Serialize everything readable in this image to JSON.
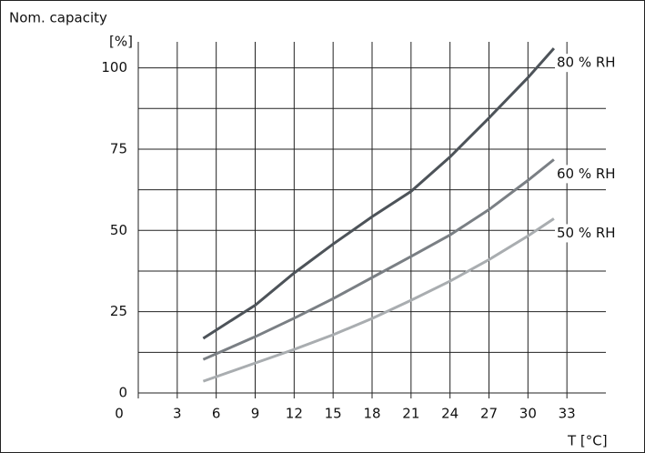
{
  "chart_data": {
    "type": "line",
    "title": "Nom. capacity",
    "y_unit": "[%]",
    "x_label": "T [°C]",
    "x": [
      5,
      9,
      12,
      15,
      18,
      21,
      24,
      27,
      30,
      32
    ],
    "series": [
      {
        "name": "80 % RH",
        "color": "#4d5359",
        "values": [
          16.8,
          27,
          36.9,
          45.8,
          54.2,
          62,
          72.6,
          84.6,
          97,
          106
        ]
      },
      {
        "name": "60 % RH",
        "color": "#7a7f84",
        "values": [
          10.3,
          17.3,
          23,
          29,
          35.5,
          42,
          48.6,
          56.4,
          65.4,
          71.8
        ]
      },
      {
        "name": "50 % RH",
        "color": "#a9adb0",
        "values": [
          3.6,
          9.2,
          13.4,
          17.9,
          22.9,
          28.5,
          34.4,
          41,
          48.3,
          53.6
        ]
      }
    ],
    "xlim": [
      0,
      36
    ],
    "xticks": [
      0,
      3,
      6,
      9,
      12,
      15,
      18,
      21,
      24,
      27,
      30,
      33
    ],
    "ylim": [
      0,
      108
    ],
    "yticks": [
      0,
      25,
      50,
      75,
      100
    ],
    "y_minor_gridlines": [
      12.5,
      37.5,
      62.5,
      87.5
    ],
    "grid": true
  }
}
